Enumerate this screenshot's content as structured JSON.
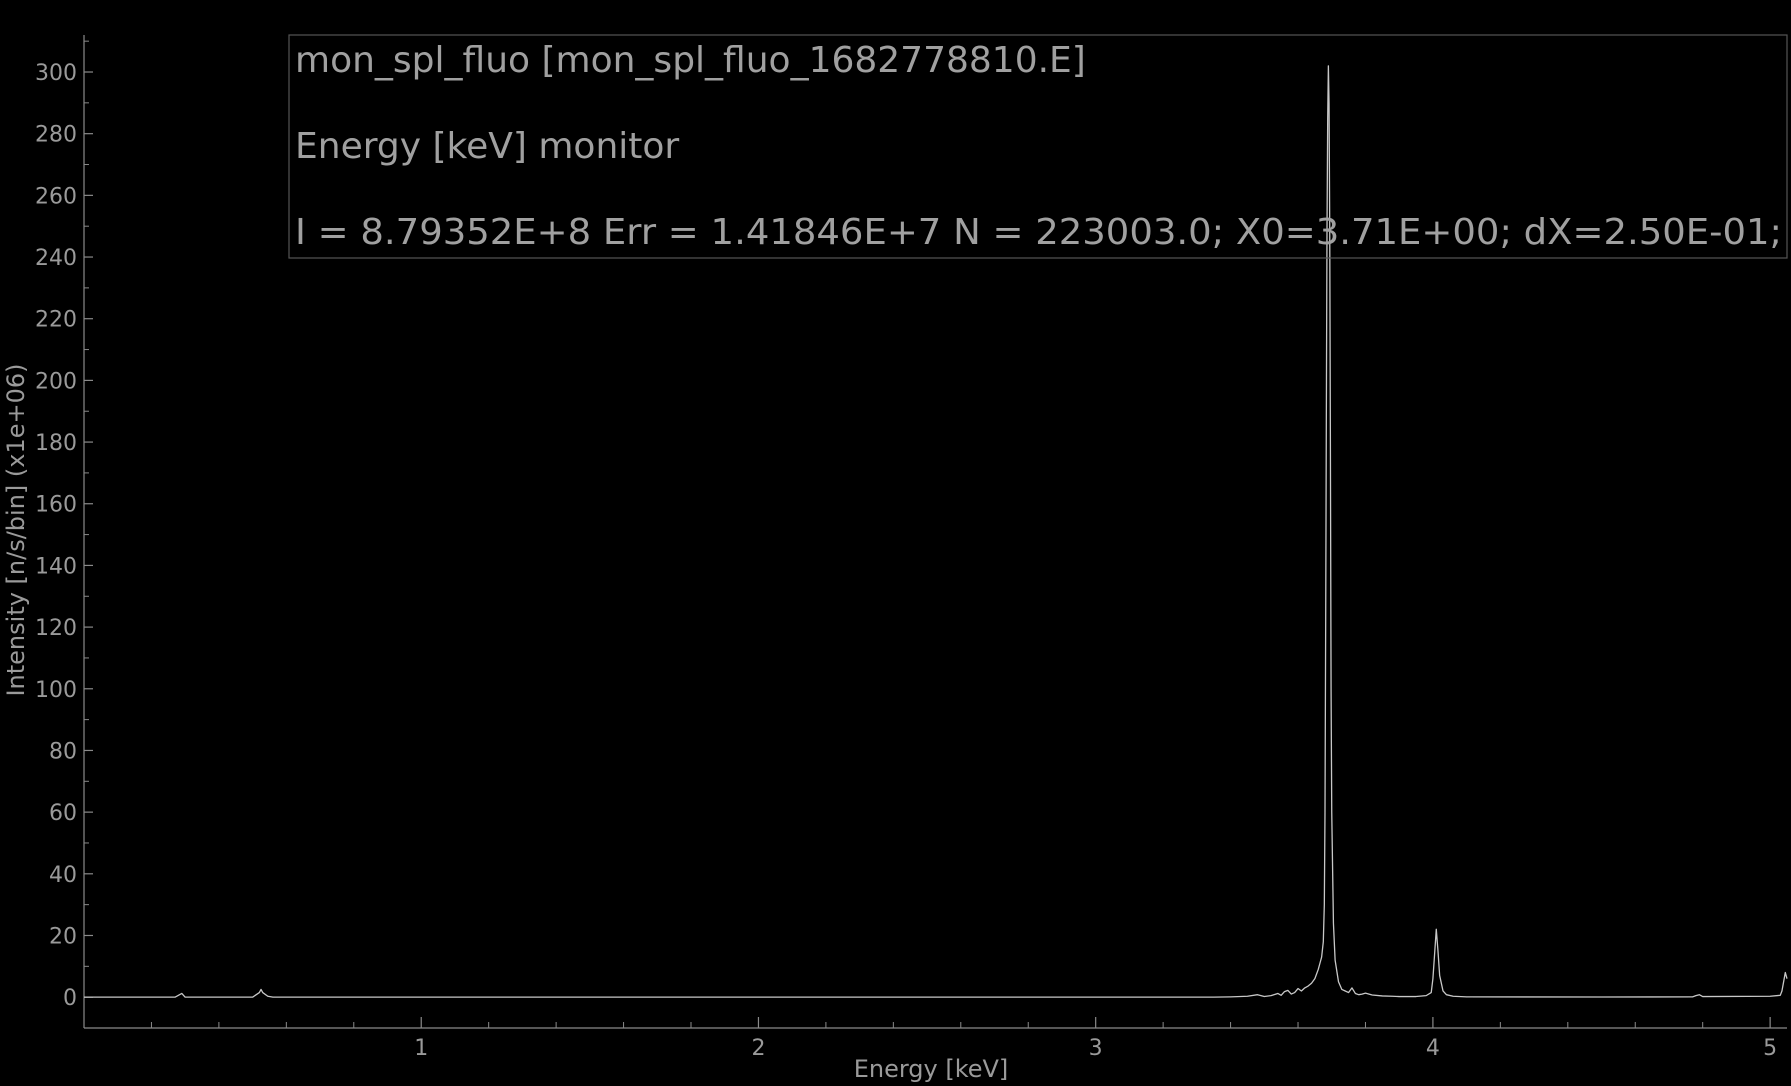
{
  "chart_data": {
    "type": "line",
    "title": "",
    "xlabel": "Energy [keV]",
    "ylabel": "Intensity [n/s/bin] (x1e+06)",
    "xlim": [
      0.0,
      5.05
    ],
    "ylim": [
      -10,
      312
    ],
    "x_major_ticks": [
      1,
      2,
      3,
      4,
      5
    ],
    "x_minor_step": 0.2,
    "y_major_ticks": [
      0,
      20,
      40,
      60,
      80,
      100,
      120,
      140,
      160,
      180,
      200,
      220,
      240,
      260,
      280,
      300
    ],
    "grid": false,
    "legend": null,
    "annotation_lines": [
      "mon_spl_fluo [mon_spl_fluo_1682778810.E]",
      "Energy [keV] monitor",
      "I = 8.79352E+8 Err = 1.41846E+7 N = 223003.0; X0=3.71E+00; dX=2.50E-01;"
    ],
    "series": [
      {
        "color": "#c8c8c8",
        "x": [
          0.0,
          0.27,
          0.28,
          0.29,
          0.3,
          0.5,
          0.52,
          0.525,
          0.53,
          0.545,
          0.56,
          1.0,
          2.0,
          3.0,
          3.35,
          3.4,
          3.45,
          3.48,
          3.5,
          3.52,
          3.54,
          3.55,
          3.56,
          3.57,
          3.58,
          3.59,
          3.6,
          3.61,
          3.62,
          3.63,
          3.64,
          3.65,
          3.655,
          3.66,
          3.665,
          3.67,
          3.675,
          3.678,
          3.68,
          3.682,
          3.684,
          3.686,
          3.688,
          3.69,
          3.692,
          3.694,
          3.696,
          3.698,
          3.7,
          3.705,
          3.71,
          3.72,
          3.73,
          3.74,
          3.75,
          3.76,
          3.77,
          3.78,
          3.79,
          3.8,
          3.82,
          3.85,
          3.88,
          3.9,
          3.95,
          3.98,
          3.995,
          4.0,
          4.005,
          4.01,
          4.015,
          4.02,
          4.03,
          4.04,
          4.06,
          4.1,
          4.5,
          4.77,
          4.78,
          4.79,
          4.8,
          5.0,
          5.03,
          5.035,
          5.04,
          5.045,
          5.05
        ],
        "y": [
          0,
          0,
          0.6,
          1.2,
          0,
          0,
          1.5,
          2.5,
          1.5,
          0.3,
          0,
          0,
          0,
          0,
          0,
          0.1,
          0.3,
          0.8,
          0.2,
          0.5,
          1.2,
          0.6,
          1.8,
          2.2,
          1.0,
          1.5,
          2.8,
          2.0,
          3.0,
          3.6,
          4.5,
          6.0,
          7.5,
          9.0,
          11.0,
          13.0,
          18.0,
          30.0,
          60.0,
          120.0,
          190.0,
          250.0,
          285.0,
          302.0,
          290.0,
          250.0,
          180.0,
          100.0,
          60.0,
          24.0,
          12.0,
          5.0,
          2.5,
          2.0,
          1.5,
          3.0,
          1.2,
          0.8,
          1.0,
          1.3,
          0.7,
          0.4,
          0.3,
          0.2,
          0.2,
          0.5,
          1.5,
          6.0,
          14.0,
          22.0,
          15.0,
          7.0,
          2.0,
          0.8,
          0.3,
          0.1,
          0.05,
          0.1,
          0.5,
          0.8,
          0.2,
          0.3,
          0.6,
          2.0,
          5.0,
          8.0,
          6.0
        ]
      }
    ]
  }
}
